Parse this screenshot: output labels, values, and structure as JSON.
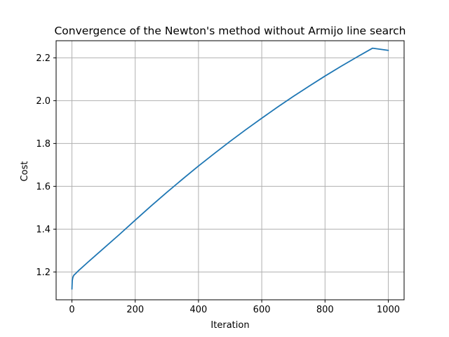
{
  "chart_data": {
    "type": "line",
    "title": "Convergence of the Newton's method without Armijo line search",
    "xlabel": "Iteration",
    "ylabel": "Cost",
    "xlim": [
      -50,
      1050
    ],
    "ylim": [
      1.07,
      2.28
    ],
    "xticks": [
      0,
      200,
      400,
      600,
      800,
      1000
    ],
    "yticks": [
      1.2,
      1.4,
      1.6,
      1.8,
      2.0,
      2.2
    ],
    "xtick_labels": [
      "0",
      "200",
      "400",
      "600",
      "800",
      "1000"
    ],
    "ytick_labels": [
      "1.2",
      "1.4",
      "1.6",
      "1.8",
      "2.0",
      "2.2"
    ],
    "grid": true,
    "legend": false,
    "colors": {
      "series": "#1f77b4",
      "grid": "#b0b0b0",
      "axes": "#000000"
    },
    "series": [
      {
        "x": [
          0,
          1,
          3,
          5,
          8,
          10,
          20,
          50,
          100,
          150,
          200,
          250,
          300,
          350,
          400,
          450,
          500,
          550,
          600,
          650,
          700,
          750,
          800,
          850,
          900,
          950,
          1000
        ],
        "y": [
          1.12,
          1.16,
          1.175,
          1.182,
          1.188,
          1.19,
          1.205,
          1.245,
          1.31,
          1.375,
          1.442,
          1.508,
          1.572,
          1.634,
          1.695,
          1.753,
          1.81,
          1.865,
          1.918,
          1.97,
          2.02,
          2.068,
          2.115,
          2.16,
          2.203,
          2.245,
          2.235
        ]
      }
    ]
  }
}
